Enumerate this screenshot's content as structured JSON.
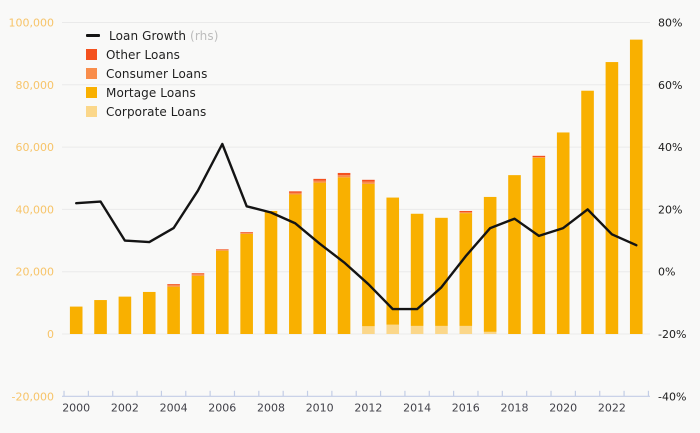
{
  "chart_data": {
    "type": "bar",
    "subtype": "stacked-bars-with-line-overlay",
    "title": "",
    "categories": [
      2000,
      2001,
      2002,
      2003,
      2004,
      2005,
      2006,
      2007,
      2008,
      2009,
      2010,
      2011,
      2012,
      2013,
      2014,
      2015,
      2016,
      2017,
      2018,
      2019,
      2020,
      2021,
      2022,
      2023
    ],
    "series": [
      {
        "name": "Corporate Loans",
        "color": "#fbd78a",
        "stack_order": "bottom",
        "values": [
          0,
          0,
          0,
          0,
          0,
          0,
          0,
          0,
          0,
          0,
          0,
          0,
          2500,
          3000,
          2600,
          2600,
          2600,
          700,
          0,
          0,
          0,
          0,
          0,
          0
        ]
      },
      {
        "name": "Mortage Loans",
        "color": "#f9b000",
        "stack_order": "middle",
        "values": [
          8800,
          10900,
          12000,
          13500,
          15200,
          18700,
          26750,
          32150,
          39500,
          44800,
          48600,
          50300,
          45700,
          40800,
          36000,
          34700,
          36200,
          43300,
          51000,
          56600,
          64700,
          78100,
          87300,
          94500
        ]
      },
      {
        "name": "Consumer Loans",
        "color": "#f98d4b",
        "stack_order": "upper",
        "values": [
          0,
          0,
          0,
          0,
          500,
          500,
          250,
          300,
          0,
          500,
          600,
          700,
          700,
          0,
          0,
          0,
          300,
          0,
          0,
          200,
          0,
          0,
          0,
          0
        ]
      },
      {
        "name": "Other Loans",
        "color": "#f4511e",
        "stack_order": "top",
        "values": [
          0,
          0,
          0,
          0,
          300,
          300,
          200,
          250,
          0,
          500,
          600,
          700,
          600,
          0,
          0,
          0,
          400,
          0,
          0,
          400,
          0,
          0,
          0,
          0
        ]
      }
    ],
    "line_series": {
      "name": "Loan Growth",
      "suffix": "(rhs)",
      "axis": "right",
      "color": "#141414",
      "values": [
        22,
        22.5,
        10,
        9.5,
        14,
        26,
        41,
        21,
        19,
        15.5,
        9,
        3,
        -4,
        -12,
        -12,
        -5,
        5,
        14,
        17,
        11.5,
        14,
        20,
        12,
        8.5
      ]
    },
    "left_axis": {
      "min": -20000,
      "max": 100000,
      "step": 20000,
      "label_color": "#f7c469",
      "tick_labels": [
        "-20,000",
        "0",
        "20,000",
        "40,000",
        "60,000",
        "80,000",
        "100,000"
      ]
    },
    "right_axis": {
      "min": -40,
      "max": 80,
      "step": 20,
      "unit": "%",
      "label_color": "#1c1c1c",
      "tick_labels": [
        "-40%",
        "-20%",
        "0%",
        "20%",
        "40%",
        "60%",
        "80%"
      ]
    },
    "x_axis": {
      "first_year": 2000,
      "last_year": 2023,
      "labeled_every": 2,
      "label_color": "#42424a",
      "line_color": "#c3cde6",
      "tick_labels": [
        "2000",
        "2002",
        "2004",
        "2006",
        "2008",
        "2010",
        "2012",
        "2014",
        "2016",
        "2018",
        "2020",
        "2022"
      ]
    },
    "grid": true,
    "gridline_color": "#eaeaea",
    "legend_position": "top-left",
    "background": "#f9f9f8"
  },
  "legend": {
    "items": [
      {
        "label": "Loan Growth",
        "suffix": " (rhs)",
        "swatch": "line",
        "color": "#141414"
      },
      {
        "label": "Other Loans",
        "suffix": "",
        "swatch": "square",
        "color": "#f4511e"
      },
      {
        "label": "Consumer Loans",
        "suffix": "",
        "swatch": "square",
        "color": "#f98d4b"
      },
      {
        "label": "Mortage Loans",
        "suffix": "",
        "swatch": "square",
        "color": "#f9b000"
      },
      {
        "label": "Corporate Loans",
        "suffix": "",
        "swatch": "square",
        "color": "#fbd78a"
      }
    ]
  }
}
